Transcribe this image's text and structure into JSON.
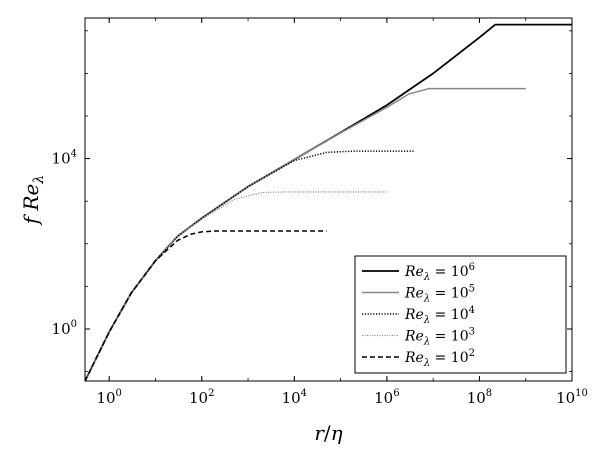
{
  "chart_data": {
    "type": "line",
    "x_scale": "log",
    "y_scale": "log",
    "xlim": [
      0.3,
      10000000000.0
    ],
    "ylim": [
      0.06,
      20000000
    ],
    "x_ticks": [
      {
        "value": 1,
        "base": "10",
        "exp": "0"
      },
      {
        "value": 100,
        "base": "10",
        "exp": "2"
      },
      {
        "value": 10000,
        "base": "10",
        "exp": "4"
      },
      {
        "value": 1000000,
        "base": "10",
        "exp": "6"
      },
      {
        "value": 100000000,
        "base": "10",
        "exp": "8"
      },
      {
        "value": 10000000000,
        "base": "10",
        "exp": "10"
      }
    ],
    "y_ticks": [
      {
        "value": 1,
        "base": "10",
        "exp": "0"
      },
      {
        "value": 10000,
        "base": "10",
        "exp": "4"
      }
    ],
    "xlabel": {
      "main": "r",
      "sep": "/",
      "denom": "η"
    },
    "ylabel": {
      "main": "f Re",
      "sub": "λ"
    },
    "grid": false,
    "legend_position": "bottom-right",
    "series": [
      {
        "name": "Reλ = 10^6",
        "label": {
          "main": "Re",
          "sub": "λ",
          "eq": " = 10",
          "exp": "6"
        },
        "color": "#000000",
        "dash": "solid",
        "width": 1.8,
        "x": [
          0.3,
          1,
          3,
          10,
          30,
          100,
          1000,
          10000,
          100000,
          1000000,
          10000000,
          100000000,
          220000000,
          10000000000.0
        ],
        "y": [
          0.06,
          0.85,
          7,
          40,
          150,
          400,
          2200,
          9500,
          41000,
          180000,
          1000000,
          7000000,
          14000000,
          14000000
        ]
      },
      {
        "name": "Reλ = 10^5",
        "label": {
          "main": "Re",
          "sub": "λ",
          "eq": " = 10",
          "exp": "5"
        },
        "color": "#888888",
        "dash": "solid",
        "width": 1.5,
        "x": [
          0.3,
          1,
          3,
          10,
          30,
          100,
          1000,
          10000,
          100000,
          1000000,
          3000000,
          8000000,
          1000000000.0
        ],
        "y": [
          0.06,
          0.85,
          7,
          40,
          150,
          400,
          2200,
          9500,
          40000,
          160000,
          330000,
          440000,
          440000
        ]
      },
      {
        "name": "Reλ = 10^4",
        "label": {
          "main": "Re",
          "sub": "λ",
          "eq": " = 10",
          "exp": "4"
        },
        "color": "#000000",
        "dash": "1.2 1.6",
        "width": 1.5,
        "x": [
          0.3,
          1,
          3,
          10,
          30,
          100,
          1000,
          10000,
          50000,
          200000,
          4000000
        ],
        "y": [
          0.06,
          0.85,
          7,
          40,
          150,
          400,
          2200,
          9000,
          14000,
          15000,
          15000
        ]
      },
      {
        "name": "Reλ = 10^3",
        "label": {
          "main": "Re",
          "sub": "λ",
          "eq": " = 10",
          "exp": "3"
        },
        "color": "#888888",
        "dash": "1 1.5",
        "width": 1.3,
        "x": [
          0.3,
          1,
          3,
          10,
          30,
          100,
          500,
          2000,
          7000,
          1000000
        ],
        "y": [
          0.06,
          0.85,
          7,
          40,
          150,
          380,
          1100,
          1600,
          1650,
          1650
        ]
      },
      {
        "name": "Reλ = 10^2",
        "label": {
          "main": "Re",
          "sub": "λ",
          "eq": " = 10",
          "exp": "2"
        },
        "color": "#000000",
        "dash": "5 3",
        "width": 1.5,
        "x": [
          0.3,
          1,
          3,
          10,
          30,
          60,
          100,
          200,
          50000
        ],
        "y": [
          0.06,
          0.85,
          7,
          40,
          120,
          170,
          190,
          200,
          200
        ]
      }
    ]
  }
}
